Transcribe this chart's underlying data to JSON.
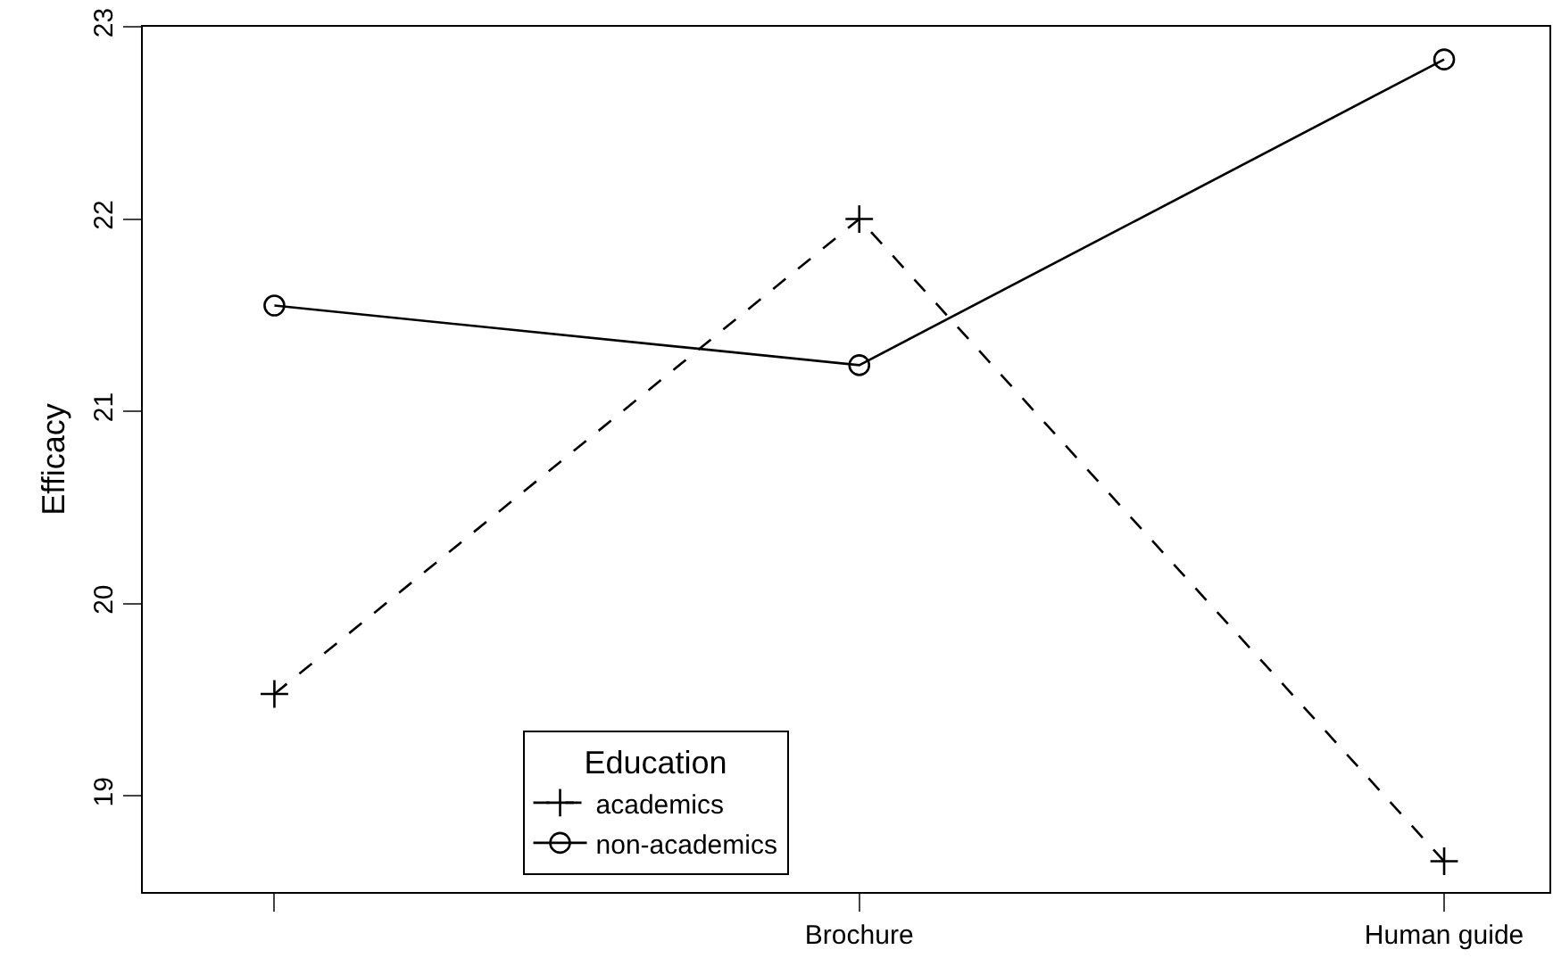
{
  "chart_data": {
    "type": "line",
    "ylabel": "Efficacy",
    "legend_title": "Education",
    "categories": [
      null,
      "Brochure",
      "Human guide"
    ],
    "series": [
      {
        "name": "academics",
        "color": "#000000",
        "values": [
          19.53,
          22.0,
          18.66
        ],
        "marker": "cross",
        "line_style": "dashed"
      },
      {
        "name": "non-academics",
        "color": "#000000",
        "values": [
          21.55,
          21.24,
          22.83
        ],
        "marker": "circle",
        "line_style": "solid"
      }
    ],
    "ylim": [
      18.5,
      23.0
    ],
    "yticks": [
      19,
      20,
      21,
      22,
      23
    ],
    "legend": "bottom"
  }
}
